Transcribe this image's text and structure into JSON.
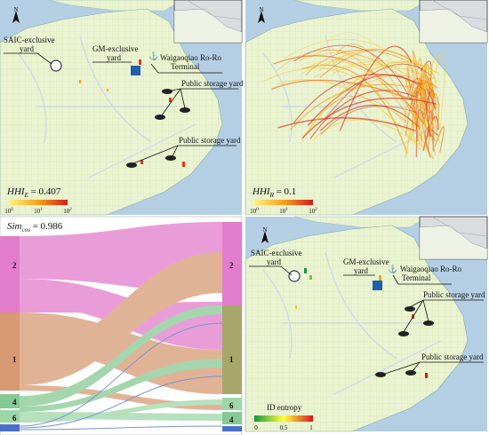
{
  "panels": [
    {
      "north": "N",
      "annotations": [
        [
          "SAIC-exclusive",
          "yard"
        ],
        [
          "GM-exclusive",
          "yard"
        ],
        [
          "Waigaoqiao Ro-Ro",
          "Terminal"
        ],
        [
          "Public storage yard"
        ],
        [
          "Public storage yard"
        ]
      ],
      "metric": {
        "symbol": "HHI",
        "sub": "E",
        "rest": " = 0.407"
      },
      "legend": {
        "ticks": [
          {
            "base": "10",
            "exp": "0"
          },
          {
            "base": "10",
            "exp": "1"
          },
          {
            "base": "10",
            "exp": "2"
          }
        ]
      }
    },
    {
      "north": "N",
      "metric": {
        "symbol": "HHI",
        "sub": "R",
        "rest": " = 0.1"
      },
      "legend": {
        "ticks": [
          {
            "base": "10",
            "exp": "0"
          },
          {
            "base": "10",
            "exp": "1"
          },
          {
            "base": "10",
            "exp": "2"
          }
        ]
      }
    },
    {
      "metric": {
        "symbol": "Sim",
        "sub": "cos",
        "rest": " = 0.986"
      },
      "left_nodes": [
        "2",
        "1",
        "4",
        "6"
      ],
      "right_nodes": [
        "2",
        "1",
        "6",
        "4"
      ]
    },
    {
      "north": "N",
      "annotations": [
        [
          "SAIC-exclusive",
          "yard"
        ],
        [
          "GM-exclusive",
          "yard"
        ],
        [
          "Waigaoqiao Ro-Ro",
          "Terminal"
        ],
        [
          "Public storage yard"
        ],
        [
          "Public storage yard"
        ]
      ],
      "legend": {
        "title": "ID entropy",
        "ticks": [
          "0",
          "0.5",
          "1"
        ]
      }
    }
  ]
}
